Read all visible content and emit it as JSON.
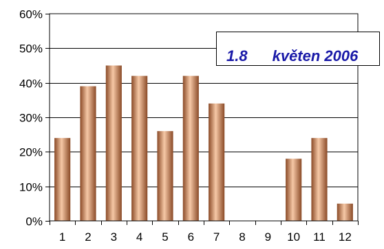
{
  "chart_data": {
    "type": "bar",
    "categories": [
      "1",
      "2",
      "3",
      "4",
      "5",
      "6",
      "7",
      "8",
      "9",
      "10",
      "11",
      "12"
    ],
    "values": [
      24,
      39,
      45,
      42,
      26,
      42,
      34,
      0,
      0,
      18,
      24,
      5
    ],
    "y_tick_labels": [
      "0%",
      "10%",
      "20%",
      "30%",
      "40%",
      "50%",
      "60%"
    ],
    "ylim": [
      0,
      60
    ],
    "grid": true,
    "legend": "none",
    "title_parts": [
      "1.8",
      "květen 2006"
    ],
    "colors": {
      "bar_light": "#f6c8a6",
      "bar_mid": "#d99569",
      "bar_dark": "#8a4a27",
      "title": "#1a1aa8"
    }
  }
}
